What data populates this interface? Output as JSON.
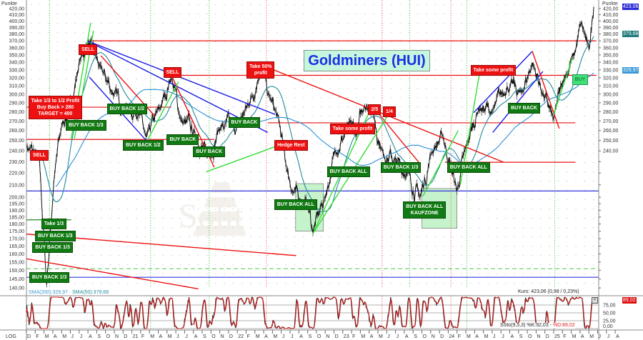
{
  "chart_data": {
    "type": "line",
    "title": "Goldminers (HUI)",
    "y_unit_label": "Punkte",
    "y_scale": "log",
    "ylim": [
      138,
      425
    ],
    "grid": true,
    "y_ticks": [
      420,
      410,
      400,
      390,
      380,
      370,
      360,
      350,
      340,
      330,
      320,
      310,
      300,
      290,
      280,
      270,
      260,
      250,
      240,
      230,
      220,
      210,
      200,
      195,
      190,
      185,
      180,
      175,
      170,
      165,
      160,
      155,
      150,
      145,
      140
    ],
    "x_tick_labels": [
      "D",
      "F",
      "M",
      "A",
      "M",
      "J",
      "J",
      "A",
      "S",
      "O",
      "N",
      "D",
      "21",
      "F",
      "M",
      "A",
      "M",
      "J",
      "J",
      "A",
      "S",
      "O",
      "N",
      "D",
      "22",
      "F",
      "M",
      "A",
      "M",
      "J",
      "J",
      "A",
      "S",
      "O",
      "N",
      "D",
      "23",
      "F",
      "M",
      "A",
      "M",
      "J",
      "J",
      "A",
      "S",
      "O",
      "N",
      "D",
      "24",
      "F",
      "M",
      "A",
      "M",
      "J",
      "J",
      "A",
      "S",
      "O",
      "N",
      "D",
      "25",
      "F",
      "M",
      "A",
      "M",
      "J",
      "J",
      "A"
    ],
    "x_axis_mode_label": "LOG",
    "price_series": {
      "name": "Kurs",
      "color": "#111111",
      "points": [
        [
          "2020-01-01",
          245
        ],
        [
          "2020-02-15",
          230
        ],
        [
          "2020-03-10",
          142
        ],
        [
          "2020-04-05",
          215
        ],
        [
          "2020-05-01",
          265
        ],
        [
          "2020-06-05",
          290
        ],
        [
          "2020-07-01",
          340
        ],
        [
          "2020-08-01",
          368
        ],
        [
          "2020-09-15",
          330
        ],
        [
          "2020-11-01",
          300
        ],
        [
          "2020-12-05",
          285
        ],
        [
          "2021-01-25",
          280
        ],
        [
          "2021-02-20",
          250
        ],
        [
          "2021-04-10",
          285
        ],
        [
          "2021-05-15",
          322
        ],
        [
          "2021-06-20",
          270
        ],
        [
          "2021-08-10",
          255
        ],
        [
          "2021-09-18",
          235
        ],
        [
          "2021-11-05",
          265
        ],
        [
          "2021-12-25",
          260
        ],
        [
          "2022-02-12",
          290
        ],
        [
          "2022-03-22",
          335
        ],
        [
          "2022-04-15",
          300
        ],
        [
          "2022-05-22",
          270
        ],
        [
          "2022-06-15",
          230
        ],
        [
          "2022-07-10",
          205
        ],
        [
          "2022-09-01",
          195
        ],
        [
          "2022-09-18",
          175
        ],
        [
          "2022-11-01",
          200
        ],
        [
          "2022-12-05",
          240
        ],
        [
          "2023-01-25",
          265
        ],
        [
          "2023-02-18",
          255
        ],
        [
          "2023-03-15",
          290
        ],
        [
          "2023-04-10",
          285
        ],
        [
          "2023-05-15",
          240
        ],
        [
          "2023-07-03",
          230
        ],
        [
          "2023-08-10",
          220
        ],
        [
          "2023-09-25",
          200
        ],
        [
          "2023-11-05",
          240
        ],
        [
          "2023-12-12",
          255
        ],
        [
          "2024-01-31",
          205
        ],
        [
          "2024-03-05",
          245
        ],
        [
          "2024-04-15",
          285
        ],
        [
          "2024-06-03",
          280
        ],
        [
          "2024-07-22",
          310
        ],
        [
          "2024-09-10",
          300
        ],
        [
          "2024-10-18",
          340
        ],
        [
          "2024-11-25",
          300
        ],
        [
          "2025-01-01",
          270
        ],
        [
          "2025-02-05",
          320
        ],
        [
          "2025-03-12",
          350
        ],
        [
          "2025-04-05",
          395
        ],
        [
          "2025-05-01",
          355
        ],
        [
          "2025-05-18",
          423.06
        ]
      ]
    },
    "indicators": {
      "sma200": {
        "label": "SMA(200):329,97",
        "value": 329.97,
        "color": "#2a8fd6"
      },
      "sma50": {
        "label": "SMA(50):379,68",
        "value": 379.68,
        "color": "#1f8a9a"
      },
      "separator": " · ",
      "kurs_text": "Kurs: 423,06 (0,98 / 0,23%)",
      "last_price_tag": "423,06",
      "sma50_tag": "379,68",
      "sma200_tag": "329,97"
    },
    "stochastic": {
      "label_k": "SSto(9,5,3) %K:92,03 - ",
      "label_d": "%D:89,02",
      "tag": "89,02",
      "levels": [
        75,
        50,
        25,
        0
      ],
      "level_labels": [
        "75,00",
        "50,00",
        "25,00",
        "0,00"
      ],
      "k_color": "#222222",
      "d_color": "#e02020"
    },
    "horizontal_lines": [
      {
        "price": 370,
        "from": "2020-07-28",
        "to": "2025-05-27",
        "color": "#ee1111"
      },
      {
        "price": 323,
        "from": "2021-05-15",
        "to": "2025-05-27",
        "color": "#ee1111"
      },
      {
        "price": 285,
        "from": "2020-01-01",
        "to": "2021-05-15",
        "color": "#ee1111"
      },
      {
        "price": 251,
        "from": "2020-01-01",
        "to": "2021-10-12",
        "color": "#ee1111"
      },
      {
        "price": 268,
        "from": "2022-04-15",
        "to": "2025-03-15",
        "color": "#ee1111"
      },
      {
        "price": 229.5,
        "from": "2023-12-20",
        "to": "2025-03-15",
        "color": "#ee1111"
      },
      {
        "price": 205,
        "from": "2020-01-01",
        "to": "2025-08-31",
        "color": "#3333dd"
      },
      {
        "price": 146,
        "from": "2020-01-01",
        "to": "2025-08-31",
        "color": "#3333dd"
      },
      {
        "price": 151,
        "from": "2020-01-01",
        "to": "2025-08-31",
        "color": "#66cc66",
        "dashed": true
      },
      {
        "price": 183,
        "from": "2020-01-01",
        "to": "2020-06-04",
        "color": "#228822"
      }
    ],
    "trend_lines": [
      {
        "from": [
          "2020-07-28",
          370
        ],
        "to": [
          "2022-05-10",
          277
        ],
        "color": "#1a1ae6"
      },
      {
        "from": [
          "2020-07-28",
          370
        ],
        "to": [
          "2022-04-15",
          258
        ],
        "color": "#1a1ae6"
      },
      {
        "from": [
          "2020-08-05",
          321
        ],
        "to": [
          "2021-02-20",
          250
        ],
        "color": "#1a1ae6"
      },
      {
        "from": [
          "2024-03-28",
          279
        ],
        "to": [
          "2024-10-18",
          355
        ],
        "color": "#1a1ae6"
      },
      {
        "from": [
          "2024-06-03",
          258
        ],
        "to": [
          "2024-11-24",
          328
        ],
        "color": "#1a1ae6"
      },
      {
        "from": [
          "2022-04-03",
          335
        ],
        "to": [
          "2024-07-10",
          229.5
        ],
        "color": "#ee1111"
      },
      {
        "from": [
          "2020-01-01",
          173
        ],
        "to": [
          "2022-07-22",
          159
        ],
        "color": "#ee1111"
      },
      {
        "from": [
          "2020-01-01",
          157
        ],
        "to": [
          "2021-08-18",
          139.5
        ],
        "color": "#ee1111"
      },
      {
        "from": [
          "2020-09-15",
          349
        ],
        "to": [
          "2021-03-20",
          275
        ],
        "color": "#ee1111"
      },
      {
        "from": [
          "2021-05-15",
          324
        ],
        "to": [
          "2021-10-12",
          225
        ],
        "color": "#ee1111"
      },
      {
        "from": [
          "2023-04-15",
          285
        ],
        "to": [
          "2023-09-25",
          228
        ],
        "color": "#ee1111"
      },
      {
        "from": [
          "2024-10-18",
          355
        ],
        "to": [
          "2025-01-20",
          262
        ],
        "color": "#ee1111"
      },
      {
        "from": [
          "2020-06-04",
          252
        ],
        "to": [
          "2020-08-10",
          397
        ],
        "color": "#33dd33"
      },
      {
        "from": [
          "2020-06-15",
          252
        ],
        "to": [
          "2020-08-20",
          385
        ],
        "color": "#33dd33"
      },
      {
        "from": [
          "2021-02-20",
          248
        ],
        "to": [
          "2021-06-10",
          315
        ],
        "color": "#33dd33"
      },
      {
        "from": [
          "2021-09-15",
          221
        ],
        "to": [
          "2022-05-10",
          244
        ],
        "color": "#33dd33"
      },
      {
        "from": [
          "2022-09-18",
          173
        ],
        "to": [
          "2023-06-20",
          283.5
        ],
        "color": "#33dd33"
      },
      {
        "from": [
          "2022-09-18",
          173
        ],
        "to": [
          "2023-04-05",
          282
        ],
        "color": "#33dd33"
      },
      {
        "from": [
          "2023-10-05",
          201
        ],
        "to": [
          "2024-02-05",
          260
        ],
        "color": "#33dd33"
      },
      {
        "from": [
          "2024-02-12",
          210
        ],
        "to": [
          "2024-04-20",
          330
        ],
        "color": "#33dd33"
      },
      {
        "from": [
          "2025-01-01",
          277
        ],
        "to": [
          "2025-03-05",
          346
        ],
        "color": "#33dd33"
      }
    ],
    "zones": [
      {
        "from": "2022-07-20",
        "to": "2022-10-25",
        "top": 211,
        "bottom": 175,
        "color": "#c6f2cc"
      },
      {
        "from": "2023-10-01",
        "to": "2024-02-01",
        "top": 207,
        "bottom": 177,
        "color": "#c6f2cc"
      }
    ],
    "vertical_markers": [
      {
        "date": "2020-03-20",
        "color": "#44bb44"
      },
      {
        "date": "2021-03-05",
        "color": "#44bb44"
      },
      {
        "date": "2021-09-25",
        "color": "#44bb44"
      },
      {
        "date": "2022-04-10",
        "color": "#ee5555"
      },
      {
        "date": "2023-05-15",
        "color": "#ee5555"
      },
      {
        "date": "2023-08-20",
        "color": "#44bb44"
      },
      {
        "date": "2024-01-10",
        "color": "#ee5555"
      },
      {
        "date": "2024-03-05",
        "color": "#44bb44"
      },
      {
        "date": "2025-01-05",
        "color": "#44bb44"
      }
    ],
    "annotations": [
      {
        "text": "SELL",
        "style": "red",
        "date": "2020-08-01",
        "price": 357
      },
      {
        "text": "SELL",
        "style": "red",
        "date": "2021-05-20",
        "price": 327
      },
      {
        "text": "SELL",
        "style": "red",
        "date": "2020-02-15",
        "price": 236
      },
      {
        "text": "Take 1/3 to 1/2 Profit\nBuy Back > 280\nTARGET = 400",
        "style": "red",
        "date": "2020-04-10",
        "price": 285
      },
      {
        "text": "BUY BACK 1/3",
        "style": "green",
        "date": "2020-07-25",
        "price": 281
      },
      {
        "text": "BUY BACK 1/2",
        "style": "green",
        "date": "2020-12-15",
        "price": 283
      },
      {
        "text": "BUY BACK 1/2",
        "style": "green",
        "date": "2021-02-10",
        "price": 245
      },
      {
        "text": "BUY BACK",
        "style": "green",
        "date": "2021-06-25",
        "price": 251
      },
      {
        "text": "BUY BACK",
        "style": "green",
        "date": "2021-09-25",
        "price": 239
      },
      {
        "text": "BUY BACK",
        "style": "green",
        "date": "2022-01-25",
        "price": 268
      },
      {
        "text": "Take 50%\nprofit",
        "style": "red",
        "date": "2022-03-20",
        "price": 330
      },
      {
        "text": "Hedge Rest",
        "style": "red",
        "date": "2022-07-05",
        "price": 245
      },
      {
        "text": "BUY BACK ALL",
        "style": "green",
        "date": "2022-07-20",
        "price": 194
      },
      {
        "text": "Take some profit",
        "style": "red",
        "date": "2023-02-05",
        "price": 262
      },
      {
        "text": "2/5",
        "style": "red",
        "date": "2023-04-20",
        "price": 282
      },
      {
        "text": "1/4",
        "style": "red",
        "date": "2023-06-10",
        "price": 280
      },
      {
        "text": "BUY BACK ALL",
        "style": "green",
        "date": "2023-01-20",
        "price": 221
      },
      {
        "text": "BUY BACK 1/3",
        "style": "green",
        "date": "2023-07-20",
        "price": 225
      },
      {
        "text": "BUY BACK ALL\nKAUFZONE",
        "style": "green",
        "date": "2023-10-10",
        "price": 190
      },
      {
        "text": "BUY BACK ALL",
        "style": "green",
        "date": "2024-03-10",
        "price": 225
      },
      {
        "text": "Take some profit",
        "style": "red",
        "date": "2024-06-05",
        "price": 329
      },
      {
        "text": "BUY BACK",
        "style": "green",
        "date": "2024-09-20",
        "price": 284
      },
      {
        "text": "BUY",
        "style": "light",
        "date": "2025-04-01",
        "price": 318
      },
      {
        "text": "Take 1/3",
        "style": "green",
        "date": "2020-04-05",
        "price": 180
      },
      {
        "text": "BUY BACK 1/3",
        "style": "green",
        "date": "2020-04-10",
        "price": 179
      },
      {
        "text": "BUY BACK 1/3",
        "style": "green",
        "date": "2020-04-01",
        "price": 175
      },
      {
        "text": "BUY BACK 1/3",
        "style": "green",
        "date": "2020-03-20",
        "price": 146
      }
    ],
    "watermark": "Solit"
  }
}
